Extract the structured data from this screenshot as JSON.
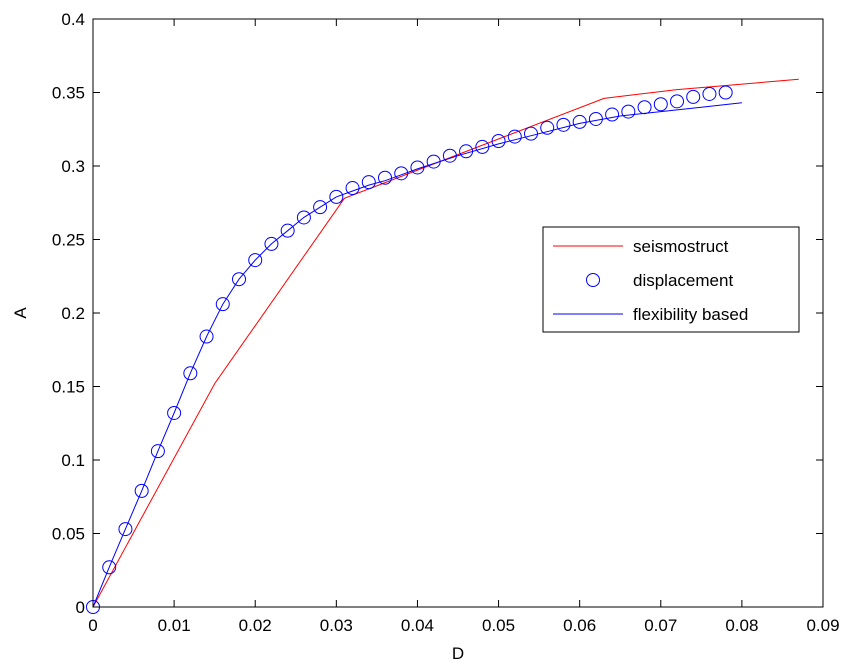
{
  "chart_data": {
    "type": "line",
    "xlabel": "D",
    "ylabel": "A",
    "xlim": [
      0,
      0.09
    ],
    "ylim": [
      0,
      0.4
    ],
    "xticks": [
      0,
      0.01,
      0.02,
      0.03,
      0.04,
      0.05,
      0.06,
      0.07,
      0.08,
      0.09
    ],
    "xtick_labels": [
      "0",
      "0.01",
      "0.02",
      "0.03",
      "0.04",
      "0.05",
      "0.06",
      "0.07",
      "0.08",
      "0.09"
    ],
    "yticks": [
      0,
      0.05,
      0.1,
      0.15,
      0.2,
      0.25,
      0.3,
      0.35,
      0.4
    ],
    "ytick_labels": [
      "0",
      "0.05",
      "0.1",
      "0.15",
      "0.2",
      "0.25",
      "0.3",
      "0.35",
      "0.4"
    ],
    "grid": false,
    "legend_position": "right",
    "series": [
      {
        "name": "seismostruct",
        "style": "line",
        "color": "#ff0000",
        "x": [
          0,
          0.015,
          0.031,
          0.063,
          0.072,
          0.087
        ],
        "y": [
          0,
          0.152,
          0.278,
          0.346,
          0.352,
          0.359
        ]
      },
      {
        "name": "displacement",
        "style": "markers",
        "marker": "circle-open",
        "color": "#0000ff",
        "x": [
          0,
          0.002,
          0.004,
          0.006,
          0.008,
          0.01,
          0.012,
          0.014,
          0.016,
          0.018,
          0.02,
          0.022,
          0.024,
          0.026,
          0.028,
          0.03,
          0.032,
          0.034,
          0.036,
          0.038,
          0.04,
          0.042,
          0.044,
          0.046,
          0.048,
          0.05,
          0.052,
          0.054,
          0.056,
          0.058,
          0.06,
          0.062,
          0.064,
          0.066,
          0.068,
          0.07,
          0.072,
          0.074,
          0.076,
          0.078
        ],
        "y": [
          0,
          0.027,
          0.053,
          0.079,
          0.106,
          0.132,
          0.159,
          0.184,
          0.206,
          0.223,
          0.236,
          0.247,
          0.256,
          0.265,
          0.272,
          0.279,
          0.285,
          0.289,
          0.292,
          0.295,
          0.299,
          0.303,
          0.307,
          0.31,
          0.313,
          0.317,
          0.32,
          0.322,
          0.326,
          0.328,
          0.33,
          0.332,
          0.335,
          0.337,
          0.34,
          0.342,
          0.344,
          0.347,
          0.349,
          0.35
        ]
      },
      {
        "name": "flexibility based",
        "style": "line",
        "color": "#0000ff",
        "x": [
          0,
          0.002,
          0.004,
          0.006,
          0.008,
          0.01,
          0.012,
          0.014,
          0.016,
          0.018,
          0.02,
          0.022,
          0.024,
          0.026,
          0.028,
          0.03,
          0.032,
          0.034,
          0.036,
          0.038,
          0.04,
          0.045,
          0.05,
          0.055,
          0.06,
          0.065,
          0.07,
          0.075,
          0.08
        ],
        "y": [
          0,
          0.027,
          0.053,
          0.079,
          0.106,
          0.132,
          0.159,
          0.184,
          0.206,
          0.223,
          0.236,
          0.247,
          0.256,
          0.265,
          0.272,
          0.279,
          0.283,
          0.287,
          0.29,
          0.294,
          0.298,
          0.307,
          0.315,
          0.322,
          0.329,
          0.334,
          0.337,
          0.34,
          0.343
        ]
      }
    ]
  }
}
